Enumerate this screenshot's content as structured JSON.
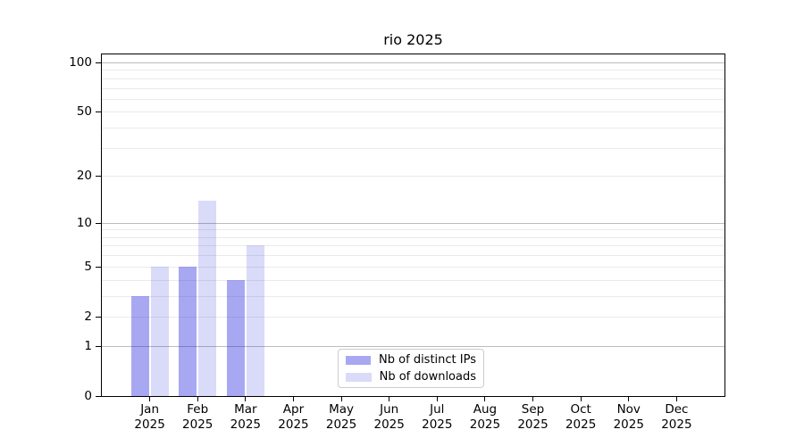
{
  "title": "rio 2025",
  "chart_data": {
    "type": "bar",
    "title": "rio 2025",
    "categories": [
      "Jan",
      "Feb",
      "Mar",
      "Apr",
      "May",
      "Jun",
      "Jul",
      "Aug",
      "Sep",
      "Oct",
      "Nov",
      "Dec"
    ],
    "category_year": "2025",
    "series": [
      {
        "name": "Nb of distinct IPs",
        "color": "rgba(25,25,220,0.38)",
        "values": [
          3,
          5,
          4,
          0,
          0,
          0,
          0,
          0,
          0,
          0,
          0,
          0
        ]
      },
      {
        "name": "Nb of downloads",
        "color": "rgba(25,25,220,0.16)",
        "values": [
          5,
          14,
          7,
          0,
          0,
          0,
          0,
          0,
          0,
          0,
          0,
          0
        ]
      }
    ],
    "xlabel": "",
    "ylabel": "",
    "yscale": "log1p",
    "ylim": [
      0,
      110
    ],
    "y_tick_labels": [
      0,
      1,
      2,
      5,
      10,
      20,
      50,
      100
    ],
    "y_major_gridlines": [
      1,
      10,
      100
    ],
    "y_minor_gridlines": [
      2,
      3,
      4,
      5,
      6,
      7,
      8,
      9,
      20,
      30,
      40,
      50,
      60,
      70,
      80,
      90
    ],
    "grid": "horizontal",
    "legend_position": "lower-center"
  },
  "colors": {
    "axis": "#000000",
    "major_grid": "#bcbcbc",
    "minor_grid": "#eaeaea",
    "background": "#ffffff"
  }
}
